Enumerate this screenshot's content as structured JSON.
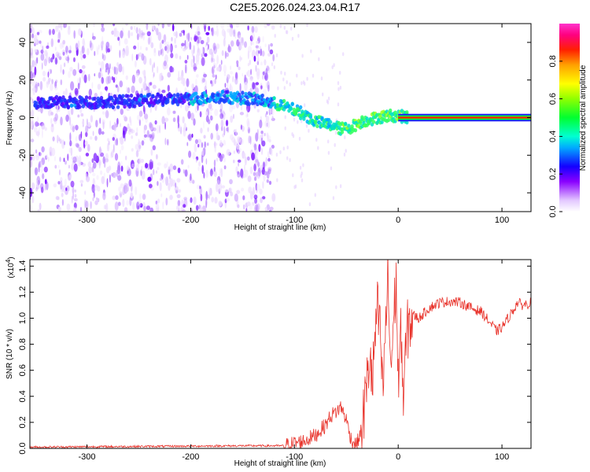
{
  "title": "C2E5.2026.024.23.04.R17",
  "chart_data": [
    {
      "type": "heatmap",
      "xlabel": "Height of straight line (km)",
      "ylabel": "Frequency (Hz)",
      "xlim": [
        -355,
        128
      ],
      "ylim": [
        -50,
        50
      ],
      "xticks": [
        "-300",
        "-200",
        "-100",
        "0",
        "100"
      ],
      "yticks": [
        "-40",
        "-20",
        "0",
        "20",
        "40"
      ],
      "colorbar": {
        "label": "Normalized spectral amplitude",
        "range": [
          0,
          1
        ],
        "ticks": [
          "0.0",
          "0.2",
          "0.4",
          "0.6",
          "0.8"
        ]
      },
      "ridge": {
        "description_values": "frequency of peak amplitude vs height",
        "x": [
          -350,
          -300,
          -250,
          -200,
          -170,
          -140,
          -115,
          -95,
          -80,
          -65,
          -55,
          -45,
          -35,
          -20,
          -10,
          0,
          10,
          128
        ],
        "y": [
          8,
          8,
          9,
          10,
          11,
          10,
          7,
          3,
          -2,
          -4,
          -6,
          -5,
          -2,
          0,
          1,
          1,
          0,
          0
        ]
      }
    },
    {
      "type": "line",
      "xlabel": "Height of straight line (km)",
      "ylabel": "SNR (10 * v/v)",
      "y_multiplier": "(x10",
      "y_multiplier_exp": "4",
      "y_multiplier_close": ")",
      "xlim": [
        -355,
        128
      ],
      "ylim": [
        0,
        1.45
      ],
      "xticks": [
        "-300",
        "-200",
        "-100",
        "0",
        "100"
      ],
      "yticks": [
        "0.0",
        "0.2",
        "0.4",
        "0.6",
        "0.8",
        "1.0",
        "1.2",
        "1.4"
      ],
      "series": [
        {
          "color": "#e8322a",
          "x": [
            -355,
            -250,
            -150,
            -110,
            -100,
            -90,
            -80,
            -70,
            -65,
            -60,
            -55,
            -50,
            -45,
            -40,
            -35,
            -30,
            -27,
            -25,
            -22,
            -20,
            -17,
            -15,
            -12,
            -10,
            -7,
            -5,
            -2,
            0,
            3,
            5,
            8,
            10,
            15,
            20,
            30,
            40,
            50,
            60,
            70,
            80,
            90,
            95,
            100,
            110,
            115,
            120,
            128
          ],
          "y": [
            0.01,
            0.015,
            0.02,
            0.02,
            0.04,
            0.06,
            0.1,
            0.18,
            0.25,
            0.28,
            0.32,
            0.22,
            0.06,
            0.03,
            0.15,
            0.5,
            0.75,
            0.45,
            0.9,
            1.05,
            0.85,
            0.4,
            0.95,
            1.3,
            0.6,
            0.9,
            1.3,
            0.5,
            0.9,
            0.35,
            0.85,
            0.95,
            1.02,
            1.0,
            1.08,
            1.12,
            1.13,
            1.12,
            1.08,
            1.05,
            0.95,
            0.9,
            0.93,
            1.05,
            1.12,
            1.1,
            1.12
          ]
        }
      ]
    }
  ]
}
